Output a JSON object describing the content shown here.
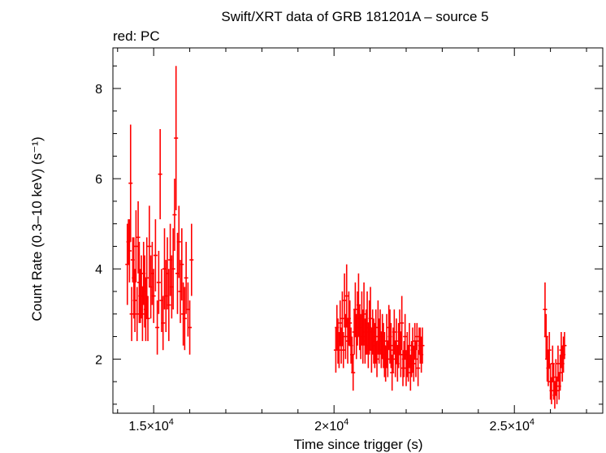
{
  "chart_data": {
    "type": "scatter",
    "title": "Swift/XRT data of GRB 181201A – source 5",
    "subtitle": "red: PC",
    "xlabel": "Time since trigger (s)",
    "ylabel": "Count Rate (0.3–10 keV) (s⁻¹)",
    "xlim": [
      13870,
      27450
    ],
    "ylim": [
      0.8,
      8.9
    ],
    "grid": false,
    "x_ticks": [
      {
        "value": 15000,
        "mantissa": "1.5×10",
        "exp": "4"
      },
      {
        "value": 20000,
        "mantissa": "2×10",
        "exp": "4"
      },
      {
        "value": 25000,
        "mantissa": "2.5×10",
        "exp": "4"
      }
    ],
    "y_ticks": [
      {
        "value": 2,
        "label": "2"
      },
      {
        "value": 4,
        "label": "4"
      },
      {
        "value": 6,
        "label": "6"
      },
      {
        "value": 8,
        "label": "8"
      }
    ],
    "series": [
      {
        "color": "#ff0000",
        "points": [
          [
            14270,
            4.1,
            0.9
          ],
          [
            14300,
            4.6,
            0.5
          ],
          [
            14330,
            4.4,
            0.7
          ],
          [
            14360,
            5.9,
            1.3
          ],
          [
            14390,
            3.0,
            0.6
          ],
          [
            14420,
            4.2,
            0.5
          ],
          [
            14450,
            3.8,
            0.9
          ],
          [
            14480,
            3.3,
            0.7
          ],
          [
            14510,
            4.5,
            0.8
          ],
          [
            14540,
            3.0,
            0.6
          ],
          [
            14570,
            4.7,
            0.8
          ],
          [
            14600,
            3.7,
            0.9
          ],
          [
            14630,
            3.4,
            0.6
          ],
          [
            14660,
            3.6,
            0.7
          ],
          [
            14690,
            3.0,
            0.6
          ],
          [
            14720,
            3.9,
            0.7
          ],
          [
            14750,
            3.5,
            0.8
          ],
          [
            14780,
            3.1,
            0.7
          ],
          [
            14810,
            3.8,
            0.9
          ],
          [
            14840,
            2.9,
            0.5
          ],
          [
            14880,
            4.5,
            0.9
          ],
          [
            14920,
            3.6,
            0.7
          ],
          [
            14960,
            3.9,
            0.7
          ],
          [
            15000,
            3.4,
            0.6
          ],
          [
            15050,
            4.3,
            0.8
          ],
          [
            15100,
            2.7,
            0.6
          ],
          [
            15140,
            3.7,
            0.7
          ],
          [
            15180,
            6.1,
            1.0
          ],
          [
            15220,
            3.3,
            0.7
          ],
          [
            15260,
            2.8,
            0.6
          ],
          [
            15300,
            4.0,
            0.9
          ],
          [
            15340,
            3.4,
            0.8
          ],
          [
            15380,
            3.9,
            0.8
          ],
          [
            15420,
            3.2,
            0.8
          ],
          [
            15460,
            4.2,
            0.8
          ],
          [
            15500,
            3.6,
            0.7
          ],
          [
            15540,
            4.0,
            0.9
          ],
          [
            15580,
            5.2,
            0.8
          ],
          [
            15620,
            6.9,
            1.6
          ],
          [
            15660,
            3.9,
            0.9
          ],
          [
            15700,
            4.6,
            0.8
          ],
          [
            15740,
            3.5,
            0.7
          ],
          [
            15780,
            4.1,
            0.8
          ],
          [
            15820,
            3.0,
            0.7
          ],
          [
            15860,
            2.9,
            0.7
          ],
          [
            15900,
            3.8,
            0.8
          ],
          [
            15950,
            3.1,
            0.6
          ],
          [
            16000,
            2.7,
            0.6
          ],
          [
            16050,
            4.2,
            0.8
          ],
          [
            20050,
            2.2,
            0.5
          ],
          [
            20080,
            2.7,
            0.5
          ],
          [
            20110,
            2.4,
            0.5
          ],
          [
            20140,
            2.2,
            0.4
          ],
          [
            20170,
            2.8,
            0.5
          ],
          [
            20200,
            2.3,
            0.4
          ],
          [
            20230,
            2.9,
            0.6
          ],
          [
            20260,
            2.2,
            0.4
          ],
          [
            20290,
            3.3,
            0.6
          ],
          [
            20320,
            2.5,
            0.5
          ],
          [
            20350,
            3.4,
            0.7
          ],
          [
            20380,
            2.4,
            0.5
          ],
          [
            20410,
            2.9,
            0.6
          ],
          [
            20440,
            2.8,
            0.5
          ],
          [
            20470,
            2.3,
            0.4
          ],
          [
            20500,
            2.1,
            0.4
          ],
          [
            20530,
            1.7,
            0.4
          ],
          [
            20560,
            2.6,
            0.5
          ],
          [
            20590,
            3.1,
            0.6
          ],
          [
            20620,
            2.5,
            0.5
          ],
          [
            20650,
            2.9,
            0.6
          ],
          [
            20680,
            3.2,
            0.7
          ],
          [
            20710,
            2.7,
            0.5
          ],
          [
            20740,
            2.5,
            0.5
          ],
          [
            20770,
            2.9,
            0.6
          ],
          [
            20800,
            2.5,
            0.6
          ],
          [
            20830,
            3.0,
            0.7
          ],
          [
            20860,
            2.4,
            0.5
          ],
          [
            20890,
            2.6,
            0.5
          ],
          [
            20920,
            2.8,
            0.7
          ],
          [
            20950,
            2.3,
            0.5
          ],
          [
            20980,
            2.7,
            0.6
          ],
          [
            21010,
            2.9,
            0.7
          ],
          [
            21040,
            2.2,
            0.5
          ],
          [
            21070,
            2.6,
            0.5
          ],
          [
            21100,
            2.4,
            0.5
          ],
          [
            21130,
            2.3,
            0.5
          ],
          [
            21160,
            2.5,
            0.6
          ],
          [
            21190,
            2.0,
            0.4
          ],
          [
            21220,
            2.7,
            0.6
          ],
          [
            21250,
            2.4,
            0.5
          ],
          [
            21280,
            2.6,
            0.5
          ],
          [
            21310,
            2.2,
            0.4
          ],
          [
            21340,
            2.5,
            0.5
          ],
          [
            21370,
            2.3,
            0.5
          ],
          [
            21400,
            2.1,
            0.5
          ],
          [
            21430,
            1.9,
            0.4
          ],
          [
            21460,
            2.4,
            0.6
          ],
          [
            21490,
            2.0,
            0.4
          ],
          [
            21520,
            2.7,
            0.5
          ],
          [
            21550,
            2.5,
            0.6
          ],
          [
            21580,
            2.3,
            0.5
          ],
          [
            21610,
            1.7,
            0.4
          ],
          [
            21640,
            2.2,
            0.5
          ],
          [
            21670,
            2.6,
            0.5
          ],
          [
            21700,
            2.0,
            0.4
          ],
          [
            21730,
            2.4,
            0.5
          ],
          [
            21760,
            1.9,
            0.4
          ],
          [
            21790,
            2.3,
            0.5
          ],
          [
            21820,
            2.6,
            0.5
          ],
          [
            21850,
            2.1,
            0.5
          ],
          [
            21880,
            2.8,
            0.6
          ],
          [
            21910,
            1.8,
            0.4
          ],
          [
            21940,
            2.0,
            0.4
          ],
          [
            21970,
            2.5,
            0.5
          ],
          [
            22000,
            1.8,
            0.4
          ],
          [
            22030,
            2.1,
            0.5
          ],
          [
            22060,
            1.9,
            0.4
          ],
          [
            22090,
            2.3,
            0.5
          ],
          [
            22120,
            1.7,
            0.4
          ],
          [
            22150,
            2.0,
            0.4
          ],
          [
            22180,
            2.2,
            0.5
          ],
          [
            22210,
            1.9,
            0.4
          ],
          [
            22240,
            2.4,
            0.4
          ],
          [
            22270,
            2.0,
            0.4
          ],
          [
            22300,
            2.5,
            0.3
          ],
          [
            22330,
            1.8,
            0.4
          ],
          [
            22360,
            2.4,
            0.3
          ],
          [
            22390,
            2.3,
            0.4
          ],
          [
            22420,
            2.1,
            0.4
          ],
          [
            22450,
            2.3,
            0.4
          ],
          [
            25850,
            3.1,
            0.6
          ],
          [
            25880,
            2.5,
            0.5
          ],
          [
            25910,
            2.0,
            0.5
          ],
          [
            25940,
            1.8,
            0.4
          ],
          [
            25970,
            2.2,
            0.4
          ],
          [
            26000,
            1.5,
            0.4
          ],
          [
            26030,
            1.3,
            0.3
          ],
          [
            26060,
            1.9,
            0.4
          ],
          [
            26090,
            1.5,
            0.4
          ],
          [
            26120,
            1.2,
            0.3
          ],
          [
            26150,
            1.6,
            0.4
          ],
          [
            26180,
            1.3,
            0.3
          ],
          [
            26210,
            1.9,
            0.4
          ],
          [
            26240,
            1.4,
            0.3
          ],
          [
            26270,
            1.7,
            0.4
          ],
          [
            26300,
            2.2,
            0.4
          ],
          [
            26330,
            1.9,
            0.4
          ],
          [
            26360,
            2.1,
            0.4
          ],
          [
            26390,
            2.3,
            0.3
          ]
        ]
      }
    ]
  }
}
